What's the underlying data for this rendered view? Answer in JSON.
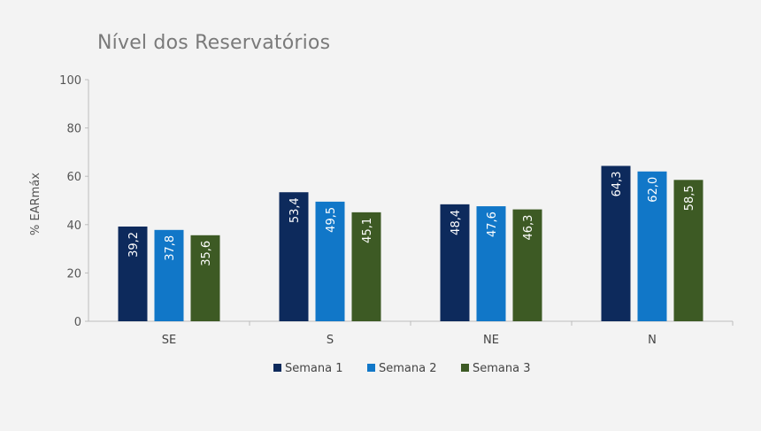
{
  "chart_data": {
    "type": "bar",
    "title": "Nível dos Reservatórios",
    "ylabel": "% EARmáx",
    "xlabel": "",
    "categories": [
      "SE",
      "S",
      "NE",
      "N"
    ],
    "ylim": [
      0,
      100
    ],
    "yticks": [
      0,
      20,
      40,
      60,
      80,
      100
    ],
    "grid": false,
    "legend_position": "bottom",
    "series": [
      {
        "name": "Semana 1",
        "color": "#0d2a5c",
        "values": [
          39.2,
          53.4,
          48.4,
          64.3
        ],
        "labels": [
          "39,2",
          "53,4",
          "48,4",
          "64,3"
        ]
      },
      {
        "name": "Semana 2",
        "color": "#1177c8",
        "values": [
          37.8,
          49.5,
          47.6,
          62.0
        ],
        "labels": [
          "37,8",
          "49,5",
          "47,6",
          "62,0"
        ]
      },
      {
        "name": "Semana 3",
        "color": "#3d5a24",
        "values": [
          35.6,
          45.1,
          46.3,
          58.5
        ],
        "labels": [
          "35,6",
          "45,1",
          "46,3",
          "58,5"
        ]
      }
    ]
  }
}
